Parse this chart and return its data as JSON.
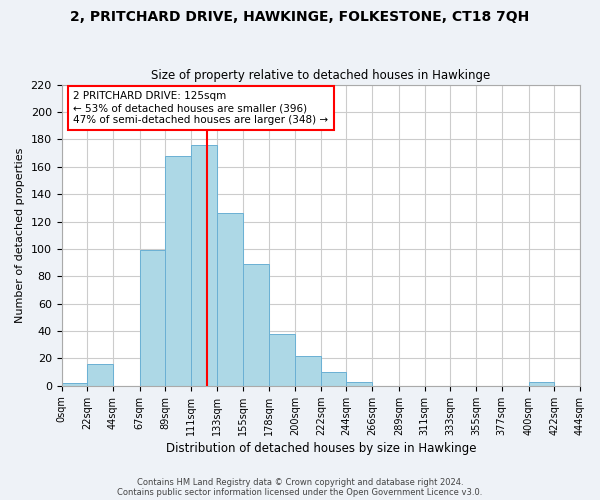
{
  "title": "2, PRITCHARD DRIVE, HAWKINGE, FOLKESTONE, CT18 7QH",
  "subtitle": "Size of property relative to detached houses in Hawkinge",
  "xlabel": "Distribution of detached houses by size in Hawkinge",
  "ylabel": "Number of detached properties",
  "bar_edges": [
    0,
    22,
    44,
    67,
    89,
    111,
    133,
    155,
    178,
    200,
    222,
    244,
    266,
    289,
    311,
    333,
    355,
    377,
    400,
    422,
    444
  ],
  "bar_heights": [
    2,
    16,
    0,
    99,
    168,
    176,
    126,
    89,
    38,
    22,
    10,
    3,
    0,
    0,
    0,
    0,
    0,
    0,
    3,
    0
  ],
  "bar_color": "#add8e6",
  "bar_edgecolor": "#6ab0d4",
  "vline_x": 125,
  "vline_color": "red",
  "annotation_title": "2 PRITCHARD DRIVE: 125sqm",
  "annotation_line1": "← 53% of detached houses are smaller (396)",
  "annotation_line2": "47% of semi-detached houses are larger (348) →",
  "annotation_box_color": "white",
  "annotation_box_edgecolor": "red",
  "ylim": [
    0,
    220
  ],
  "yticks": [
    0,
    20,
    40,
    60,
    80,
    100,
    120,
    140,
    160,
    180,
    200,
    220
  ],
  "xtick_labels": [
    "0sqm",
    "22sqm",
    "44sqm",
    "67sqm",
    "89sqm",
    "111sqm",
    "133sqm",
    "155sqm",
    "178sqm",
    "200sqm",
    "222sqm",
    "244sqm",
    "266sqm",
    "289sqm",
    "311sqm",
    "333sqm",
    "355sqm",
    "377sqm",
    "400sqm",
    "422sqm",
    "444sqm"
  ],
  "footer1": "Contains HM Land Registry data © Crown copyright and database right 2024.",
  "footer2": "Contains public sector information licensed under the Open Government Licence v3.0.",
  "background_color": "#eef2f7",
  "plot_background": "#ffffff",
  "grid_color": "#cccccc"
}
